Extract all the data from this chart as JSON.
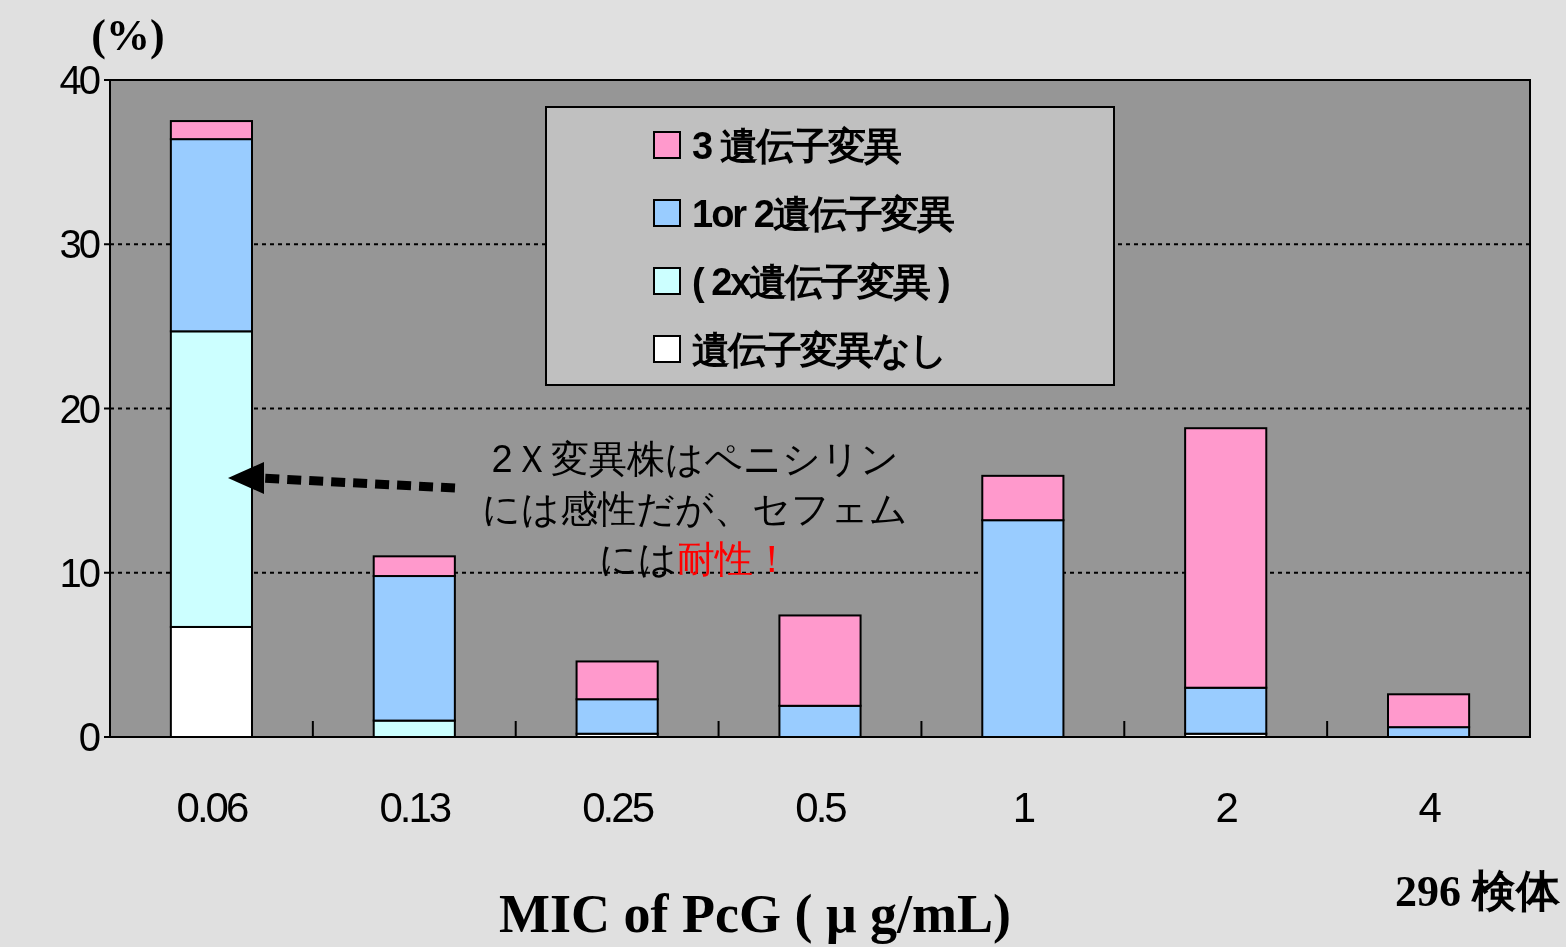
{
  "chart_data": {
    "type": "bar",
    "stacked": true,
    "ylabel": "(%)",
    "xlabel": "MIC of PcG ( μ g/mL)",
    "categories": [
      "0.06",
      "0.13",
      "0.25",
      "0.5",
      "1",
      "2",
      "4"
    ],
    "series": [
      {
        "name": "遺伝子変異なし",
        "color": "#ffffff",
        "values": [
          6.7,
          0,
          0.2,
          0,
          0,
          0.2,
          0
        ]
      },
      {
        "name": "( 2x遺伝子変異 )",
        "color": "#ccffff",
        "values": [
          18.0,
          1.0,
          0,
          0,
          0,
          0,
          0
        ]
      },
      {
        "name": "1or 2遺伝子変異",
        "color": "#99ccff",
        "values": [
          11.7,
          8.8,
          2.1,
          1.9,
          13.2,
          2.8,
          0.6
        ]
      },
      {
        "name": "3 遺伝子変異",
        "color": "#ff99cc",
        "values": [
          1.1,
          1.2,
          2.3,
          5.5,
          2.7,
          15.8,
          2.0
        ]
      }
    ],
    "ylim": [
      0,
      40
    ],
    "yticks": [
      0,
      10,
      20,
      30,
      40
    ],
    "grid": "y",
    "legend": "top",
    "annotations": [
      "2Ｘ変異株はペニシリンには感性だが、セフェムには",
      "耐性！",
      "296 検体"
    ]
  }
}
